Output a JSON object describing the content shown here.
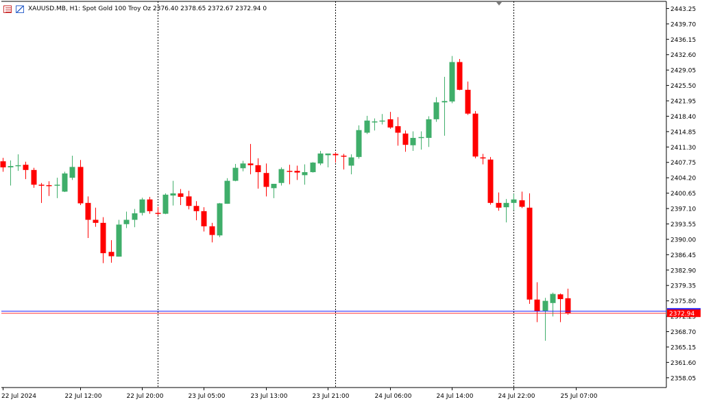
{
  "header": {
    "text": "XAUUSD.MB, H1:  Spot Gold 100 Troy Oz  2376.40 2378.65 2372.67 2372.94  0"
  },
  "colors": {
    "bull": "#3fae6a",
    "bear": "#ff0000",
    "grid": "#000000",
    "bid_line": "#ff3333",
    "ask_line": "#1a1aff",
    "price_label_bg": "#ff0000",
    "price_label_text": "#ffffff"
  },
  "chart_data": {
    "type": "candlestick",
    "symbol": "XAUUSD.MB",
    "timeframe": "H1",
    "ylim": [
      2355.8,
      2444.9
    ],
    "y_ticks": [
      "2443.25",
      "2439.70",
      "2436.15",
      "2432.60",
      "2429.05",
      "2425.50",
      "2421.95",
      "2418.40",
      "2414.85",
      "2411.30",
      "2407.75",
      "2404.20",
      "2400.65",
      "2397.10",
      "2393.55",
      "2390.00",
      "2386.45",
      "2382.90",
      "2379.35",
      "2375.80",
      "2372.25",
      "2368.70",
      "2365.15",
      "2361.60",
      "2358.05"
    ],
    "x_labels": [
      "22 Jul 2024",
      "22 Jul 12:00",
      "22 Jul 20:00",
      "23 Jul 05:00",
      "23 Jul 13:00",
      "23 Jul 21:00",
      "24 Jul 06:00",
      "24 Jul 14:00",
      "24 Jul 22:00",
      "25 Jul 07:00"
    ],
    "x_label_bars": [
      0,
      10,
      18,
      26,
      34,
      42,
      50,
      58,
      66,
      74
    ],
    "separator_bars": [
      20,
      43,
      66
    ],
    "last_price": "2372.94",
    "bid": 2372.94,
    "ask": 2373.4,
    "candles": [
      [
        2408.0,
        2408.8,
        2405.6,
        2406.6
      ],
      [
        2406.6,
        2408.2,
        2402.4,
        2406.9
      ],
      [
        2407.1,
        2409.6,
        2405.8,
        2407.1
      ],
      [
        2407.2,
        2407.9,
        2403.9,
        2406.0
      ],
      [
        2406.0,
        2406.5,
        2401.9,
        2402.6
      ],
      [
        2402.6,
        2403.0,
        2398.4,
        2402.5
      ],
      [
        2402.5,
        2403.4,
        2400.0,
        2402.4
      ],
      [
        2402.4,
        2404.2,
        2399.5,
        2402.6
      ],
      [
        2401.0,
        2405.6,
        2400.9,
        2405.2
      ],
      [
        2404.2,
        2409.3,
        2403.7,
        2406.7
      ],
      [
        2406.7,
        2408.3,
        2397.9,
        2398.3
      ],
      [
        2398.4,
        2399.9,
        2390.3,
        2394.5
      ],
      [
        2394.5,
        2397.3,
        2392.9,
        2393.8
      ],
      [
        2393.8,
        2395.1,
        2384.5,
        2386.8
      ],
      [
        2387.1,
        2389.8,
        2384.6,
        2386.1
      ],
      [
        2386.0,
        2394.5,
        2386.0,
        2393.4
      ],
      [
        2393.5,
        2396.4,
        2392.6,
        2394.5
      ],
      [
        2394.5,
        2397.0,
        2392.8,
        2396.0
      ],
      [
        2396.1,
        2399.6,
        2395.5,
        2399.2
      ],
      [
        2399.2,
        2399.8,
        2395.9,
        2396.5
      ],
      [
        2396.1,
        2397.5,
        2395.5,
        2395.9
      ],
      [
        2395.9,
        2400.6,
        2395.8,
        2400.3
      ],
      [
        2400.1,
        2403.5,
        2397.8,
        2400.6
      ],
      [
        2400.6,
        2401.6,
        2397.9,
        2399.8
      ],
      [
        2399.9,
        2401.2,
        2396.9,
        2397.7
      ],
      [
        2397.7,
        2398.8,
        2394.4,
        2396.5
      ],
      [
        2396.5,
        2397.4,
        2391.8,
        2393.0
      ],
      [
        2393.0,
        2393.8,
        2389.3,
        2391.0
      ],
      [
        2390.9,
        2398.4,
        2390.5,
        2398.3
      ],
      [
        2398.2,
        2404.1,
        2398.2,
        2403.5
      ],
      [
        2403.5,
        2407.4,
        2403.4,
        2406.5
      ],
      [
        2406.4,
        2408.1,
        2405.7,
        2407.5
      ],
      [
        2407.5,
        2412.0,
        2405.0,
        2407.1
      ],
      [
        2407.1,
        2408.7,
        2401.7,
        2405.5
      ],
      [
        2405.3,
        2407.5,
        2399.9,
        2402.1
      ],
      [
        2401.8,
        2402.6,
        2399.5,
        2402.8
      ],
      [
        2403.0,
        2406.6,
        2402.4,
        2406.2
      ],
      [
        2405.8,
        2407.2,
        2402.7,
        2405.7
      ],
      [
        2405.8,
        2407.0,
        2403.7,
        2405.4
      ],
      [
        2404.8,
        2407.3,
        2402.6,
        2405.5
      ],
      [
        2405.5,
        2407.8,
        2405.4,
        2407.7
      ],
      [
        2407.5,
        2410.4,
        2407.1,
        2409.8
      ],
      [
        2409.4,
        2409.7,
        2406.6,
        2409.8
      ],
      [
        2409.7,
        2410.0,
        2407.7,
        2409.4
      ],
      [
        2409.3,
        2409.7,
        2406.1,
        2409.1
      ],
      [
        2407.0,
        2409.6,
        2405.0,
        2408.9
      ],
      [
        2409.0,
        2416.3,
        2408.6,
        2415.2
      ],
      [
        2414.6,
        2418.5,
        2414.3,
        2417.4
      ],
      [
        2417.1,
        2417.9,
        2415.1,
        2417.2
      ],
      [
        2417.3,
        2418.9,
        2416.5,
        2417.4
      ],
      [
        2417.7,
        2419.4,
        2415.5,
        2415.8
      ],
      [
        2416.1,
        2418.2,
        2411.6,
        2414.6
      ],
      [
        2414.4,
        2415.1,
        2410.2,
        2411.8
      ],
      [
        2411.7,
        2414.9,
        2410.4,
        2413.4
      ],
      [
        2413.4,
        2414.9,
        2410.7,
        2413.6
      ],
      [
        2413.4,
        2418.4,
        2411.3,
        2417.7
      ],
      [
        2417.7,
        2422.8,
        2417.1,
        2421.6
      ],
      [
        2421.6,
        2427.5,
        2413.9,
        2421.9
      ],
      [
        2421.8,
        2432.3,
        2421.4,
        2430.9
      ],
      [
        2430.9,
        2431.6,
        2424.4,
        2424.5
      ],
      [
        2424.5,
        2426.4,
        2418.7,
        2419.0
      ],
      [
        2419.0,
        2419.6,
        2408.7,
        2409.1
      ],
      [
        2408.9,
        2409.7,
        2407.3,
        2408.7
      ],
      [
        2408.4,
        2409.0,
        2398.0,
        2398.4
      ],
      [
        2398.4,
        2400.8,
        2396.6,
        2397.3
      ],
      [
        2397.4,
        2399.3,
        2393.9,
        2398.4
      ],
      [
        2398.4,
        2400.5,
        2396.7,
        2399.2
      ],
      [
        2399.0,
        2401.0,
        2397.2,
        2397.5
      ],
      [
        2397.3,
        2400.6,
        2375.1,
        2376.1
      ],
      [
        2376.1,
        2380.1,
        2370.9,
        2373.4
      ],
      [
        2373.5,
        2376.5,
        2366.6,
        2375.8
      ],
      [
        2375.3,
        2377.7,
        2372.2,
        2377.4
      ],
      [
        2377.3,
        2377.5,
        2370.9,
        2376.2
      ],
      [
        2376.4,
        2378.6,
        2372.6,
        2372.9
      ]
    ]
  }
}
